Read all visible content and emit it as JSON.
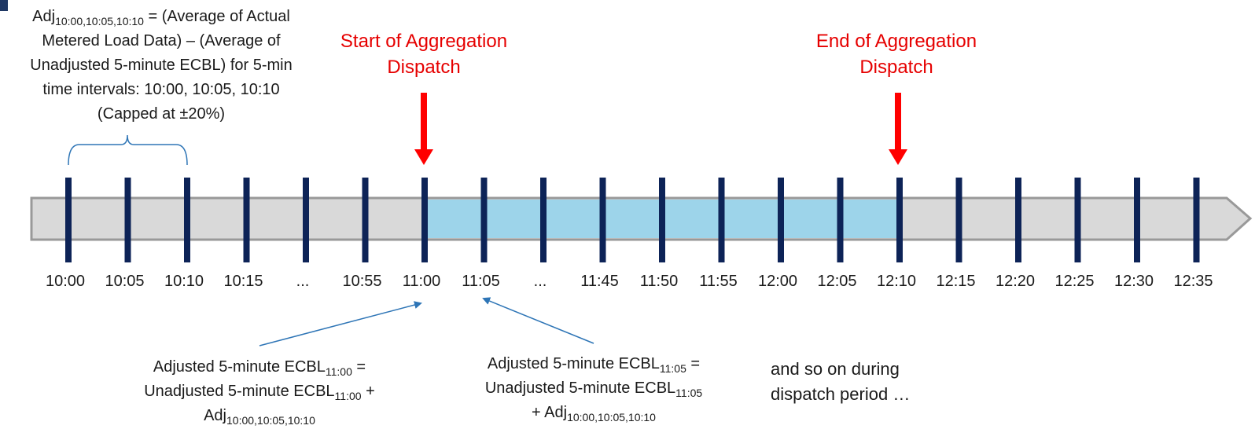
{
  "adjustment_note": {
    "adj_symbol": "Adj",
    "adj_subscript": "10:00,10:05,10:10",
    "line1_rest": " = (Average of Actual",
    "line2": "Metered Load Data) – (Average of",
    "line3": "Unadjusted 5-minute ECBL) for 5-min",
    "line4": "time intervals: 10:00, 10:05, 10:10",
    "line5": "(Capped at ±20%)"
  },
  "start_label": {
    "line1": "Start of Aggregation",
    "line2": "Dispatch"
  },
  "end_label": {
    "line1": "End of Aggregation",
    "line2": "Dispatch"
  },
  "timeline": {
    "ticks": [
      "10:00",
      "10:05",
      "10:10",
      "10:15",
      "...",
      "10:55",
      "11:00",
      "11:05",
      "...",
      "11:45",
      "11:50",
      "11:55",
      "12:00",
      "12:05",
      "12:10",
      "12:15",
      "12:20",
      "12:25",
      "12:30",
      "12:35"
    ],
    "dispatch_start_index": 6,
    "dispatch_end_index": 14
  },
  "formula_1100": {
    "line1_prefix": "Adjusted 5-minute ECBL",
    "line1_sub": "11:00",
    "line1_suffix": " =",
    "line2_prefix": "Unadjusted 5-minute ECBL",
    "line2_sub": "11:00",
    "line2_suffix": " +",
    "line3_prefix": "Adj",
    "line3_sub": "10:00,10:05,10:10"
  },
  "formula_1105": {
    "line1_prefix": "Adjusted 5-minute ECBL",
    "line1_sub": "11:05",
    "line1_suffix": " =",
    "line2_prefix": "Unadjusted 5-minute ECBL",
    "line2_sub": "11:05",
    "line3_prefix": "+ Adj",
    "line3_sub": "10:00,10:05,10:10"
  },
  "continuation_note": {
    "line1": "and so on during",
    "line2": "dispatch period …"
  },
  "colors": {
    "bar_fill": "#d9d9d9",
    "bar_stroke": "#999999",
    "dispatch_fill": "#9dd4ea",
    "tick": "#0d2357",
    "red_arrow": "#ff0000",
    "blue_pointer": "#2e75b6",
    "bracket": "#2e75b6"
  }
}
